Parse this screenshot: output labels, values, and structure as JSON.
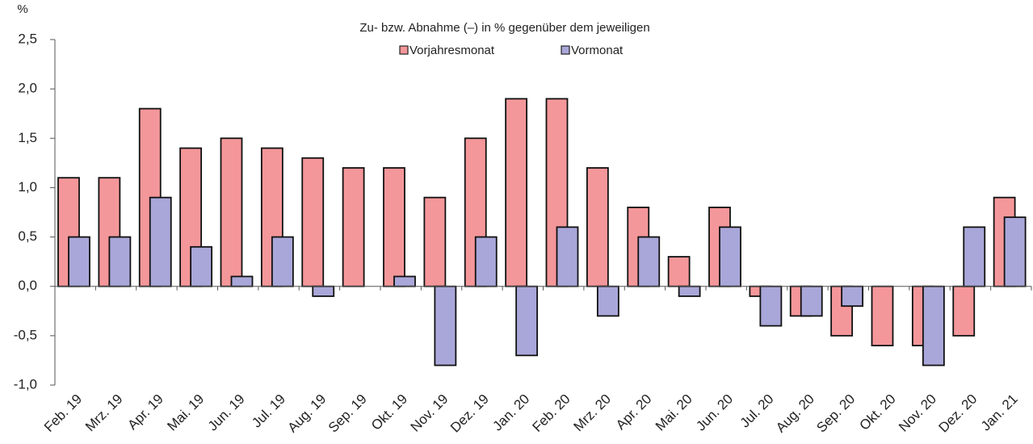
{
  "chart_data": {
    "type": "bar",
    "title": "Zu- bzw. Abnahme (–) in % gegenüber dem jeweiligen",
    "y_label": "%",
    "categories": [
      "Feb. 19",
      "Mrz. 19",
      "Apr. 19",
      "Mai. 19",
      "Jun. 19",
      "Jul. 19",
      "Aug. 19",
      "Sep. 19",
      "Okt. 19",
      "Nov. 19",
      "Dez. 19",
      "Jan. 20",
      "Feb. 20",
      "Mrz. 20",
      "Apr. 20",
      "Mai. 20",
      "Jun. 20",
      "Jul. 20",
      "Aug. 20",
      "Sep. 20",
      "Okt. 20",
      "Nov. 20",
      "Dez. 20",
      "Jan. 21"
    ],
    "series": [
      {
        "name": "Vorjahresmonat",
        "color": "#f4979a",
        "values": [
          1.1,
          1.1,
          1.8,
          1.4,
          1.5,
          1.4,
          1.3,
          1.2,
          1.2,
          0.9,
          1.5,
          1.9,
          1.9,
          1.2,
          0.8,
          0.3,
          0.8,
          -0.1,
          -0.3,
          -0.5,
          -0.6,
          -0.6,
          -0.5,
          0.9
        ]
      },
      {
        "name": "Vormonat",
        "color": "#a9a7d9",
        "values": [
          0.5,
          0.5,
          0.9,
          0.4,
          0.1,
          0.5,
          -0.1,
          0.0,
          0.1,
          -0.8,
          0.5,
          -0.7,
          0.6,
          -0.3,
          0.5,
          -0.1,
          0.6,
          -0.4,
          -0.3,
          -0.2,
          0.0,
          -0.8,
          0.6,
          0.7
        ]
      }
    ],
    "ylim": [
      -1,
      2.5
    ],
    "yticks": [
      {
        "value": -1,
        "label": "-1,0"
      },
      {
        "value": -0.5,
        "label": "-0,5"
      },
      {
        "value": 0,
        "label": "0,0"
      },
      {
        "value": 0.5,
        "label": "0,5"
      },
      {
        "value": 1,
        "label": "1,0"
      },
      {
        "value": 1.5,
        "label": "1,5"
      },
      {
        "value": 2,
        "label": "2,0"
      },
      {
        "value": 2.5,
        "label": "2,5"
      }
    ],
    "grid": false,
    "legend": "top"
  }
}
